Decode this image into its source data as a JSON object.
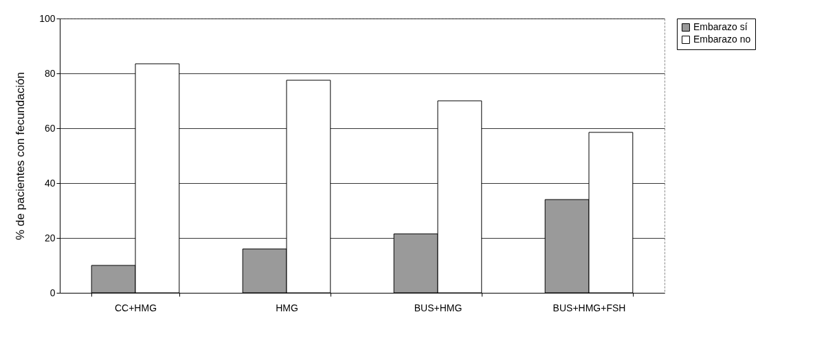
{
  "chart_data": {
    "type": "bar",
    "ylabel": "% de pacientes con fecundación",
    "categories": [
      "CC+HMG",
      "HMG",
      "BUS+HMG",
      "BUS+HMG+FSH"
    ],
    "series": [
      {
        "name": "Embarazo sí",
        "color": "#9a9a9a",
        "values": [
          10,
          16,
          21.5,
          34
        ]
      },
      {
        "name": "Embarazo no",
        "color": "#ffffff",
        "values": [
          83.5,
          77.5,
          70,
          58.5
        ]
      }
    ],
    "ylim": [
      0,
      100
    ],
    "yticks": [
      0,
      20,
      40,
      60,
      80,
      100
    ],
    "grid": "y",
    "legend": "right"
  }
}
